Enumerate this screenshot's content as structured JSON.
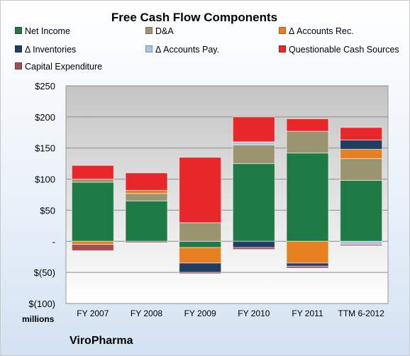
{
  "chart_data": {
    "type": "bar",
    "stacked": true,
    "title": "Free Cash Flow Components",
    "company": "ViroPharma",
    "unit_label": "millions",
    "categories": [
      "FY 2007",
      "FY 2008",
      "FY 2009",
      "FY 2010",
      "FY 2011",
      "TTM 6-2012"
    ],
    "y_tick_labels": [
      "$250",
      "$200",
      "$150",
      "$100",
      "$50",
      "-",
      "$(50)",
      "$(100)"
    ],
    "ylim": [
      -100,
      250
    ],
    "ystep": 50,
    "grid": true,
    "legend_position": "top",
    "series": [
      {
        "name": "Net Income",
        "color": "#1e7b45",
        "values": [
          95,
          65,
          -10,
          125,
          142,
          98
        ]
      },
      {
        "name": "D&A",
        "color": "#9b9470",
        "values": [
          5,
          12,
          30,
          30,
          35,
          35
        ]
      },
      {
        "name": "Δ Accounts Rec.",
        "color": "#e87f20",
        "values": [
          -5,
          5,
          -25,
          0,
          -35,
          15
        ]
      },
      {
        "name": "Δ Inventories",
        "color": "#203e63",
        "values": [
          0,
          0,
          -15,
          -10,
          -5,
          15
        ]
      },
      {
        "name": "Δ Accounts Pay.",
        "color": "#a9c3e2",
        "values": [
          0,
          0,
          0,
          5,
          0,
          -5
        ]
      },
      {
        "name": "Questionable Cash Sources",
        "color": "#e8272a",
        "values": [
          22,
          28,
          105,
          40,
          20,
          20
        ]
      },
      {
        "name": "Capital Expenditure",
        "color": "#a24e55",
        "values": [
          -10,
          -2,
          -2,
          -3,
          -3,
          -2
        ]
      }
    ]
  }
}
